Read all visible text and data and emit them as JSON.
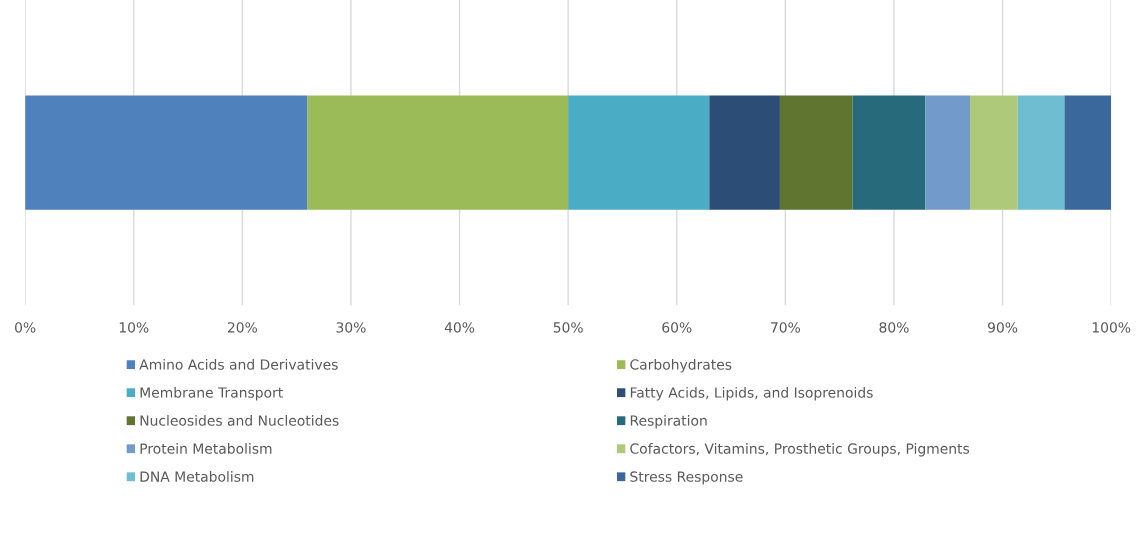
{
  "chart_data": {
    "type": "bar",
    "orientation": "horizontal",
    "stacked": true,
    "categories": [
      null
    ],
    "series": [
      {
        "name": "Amino Acids and Derivatives",
        "color": "#4f81bd",
        "values": [
          26.0
        ]
      },
      {
        "name": "Carbohydrates",
        "color": "#9bbb59",
        "values": [
          24.0
        ]
      },
      {
        "name": "Membrane Transport",
        "color": "#4bacc6",
        "values": [
          13.0
        ]
      },
      {
        "name": "Fatty Acids, Lipids, and Isoprenoids",
        "color": "#2c4d75",
        "values": [
          6.5
        ]
      },
      {
        "name": "Nucleosides and Nucleotides",
        "color": "#5f7530",
        "values": [
          6.7
        ]
      },
      {
        "name": "Respiration",
        "color": "#276a7c",
        "values": [
          6.7
        ]
      },
      {
        "name": "Protein Metabolism",
        "color": "#729aca",
        "values": [
          4.1
        ]
      },
      {
        "name": "Cofactors, Vitamins, Prosthetic Groups, Pigments",
        "color": "#afc97a",
        "values": [
          4.4
        ]
      },
      {
        "name": "DNA Metabolism",
        "color": "#6fbdd1",
        "values": [
          4.3
        ]
      },
      {
        "name": "Stress Response",
        "color": "#3a679c",
        "values": [
          4.3
        ]
      }
    ],
    "xlim": [
      0,
      100
    ],
    "xticks": [
      {
        "value": 0,
        "label": "0%"
      },
      {
        "value": 10,
        "label": "10%"
      },
      {
        "value": 20,
        "label": "20%"
      },
      {
        "value": 30,
        "label": "30%"
      },
      {
        "value": 40,
        "label": "40%"
      },
      {
        "value": 50,
        "label": "50%"
      },
      {
        "value": 60,
        "label": "60%"
      },
      {
        "value": 70,
        "label": "70%"
      },
      {
        "value": 80,
        "label": "80%"
      },
      {
        "value": 90,
        "label": "90%"
      },
      {
        "value": 100,
        "label": "100%"
      }
    ],
    "grid": "x",
    "legend": "bottom",
    "tick_labels": "x"
  }
}
